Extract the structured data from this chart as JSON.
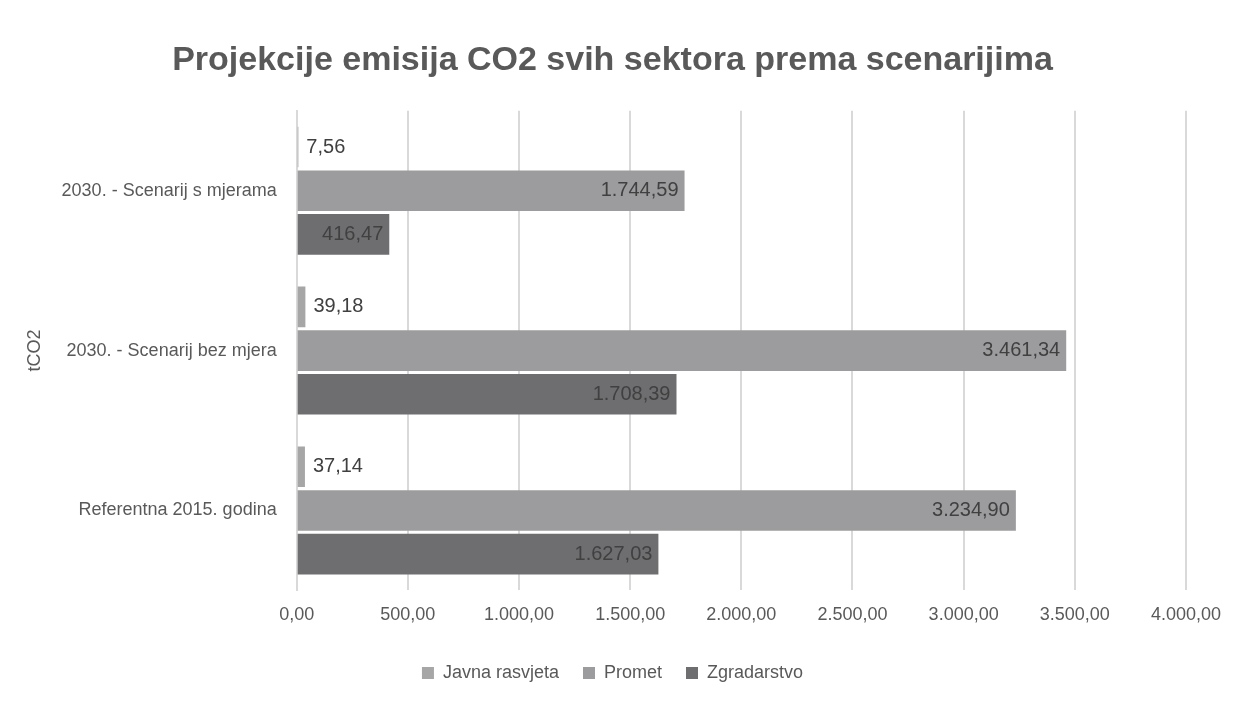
{
  "chart_data": {
    "type": "bar",
    "orientation": "horizontal",
    "title": "Projekcije emisija CO2 svih sektora prema scenarijima",
    "ylabel": "tCO2",
    "categories": [
      "2030. - Scenarij s mjerama",
      "2030. - Scenarij bez mjera",
      "Referentna 2015. godina"
    ],
    "series": [
      {
        "name": "Javna rasvjeta",
        "color": "#a6a6a6",
        "values": [
          7.56,
          39.18,
          37.14
        ],
        "value_labels": [
          "7,56",
          "39,18",
          "37,14"
        ]
      },
      {
        "name": "Promet",
        "color": "#9c9c9e",
        "values": [
          1744.59,
          3461.34,
          3234.9
        ],
        "value_labels": [
          "1.744,59",
          "3.461,34",
          "3.234,90"
        ]
      },
      {
        "name": "Zgradarstvo",
        "color": "#6e6e70",
        "values": [
          416.47,
          1708.39,
          1627.03
        ],
        "value_labels": [
          "416,47",
          "1.708,39",
          "1.627,03"
        ]
      }
    ],
    "xlim": [
      0,
      4000
    ],
    "xticks": [
      {
        "value": 0,
        "label": "0,00"
      },
      {
        "value": 500,
        "label": "500,00"
      },
      {
        "value": 1000,
        "label": "1.000,00"
      },
      {
        "value": 1500,
        "label": "1.500,00"
      },
      {
        "value": 2000,
        "label": "2.000,00"
      },
      {
        "value": 2500,
        "label": "2.500,00"
      },
      {
        "value": 3000,
        "label": "3.000,00"
      },
      {
        "value": 3500,
        "label": "3.500,00"
      },
      {
        "value": 4000,
        "label": "4.000,00"
      }
    ],
    "grid": "x",
    "legend": "bottom"
  }
}
